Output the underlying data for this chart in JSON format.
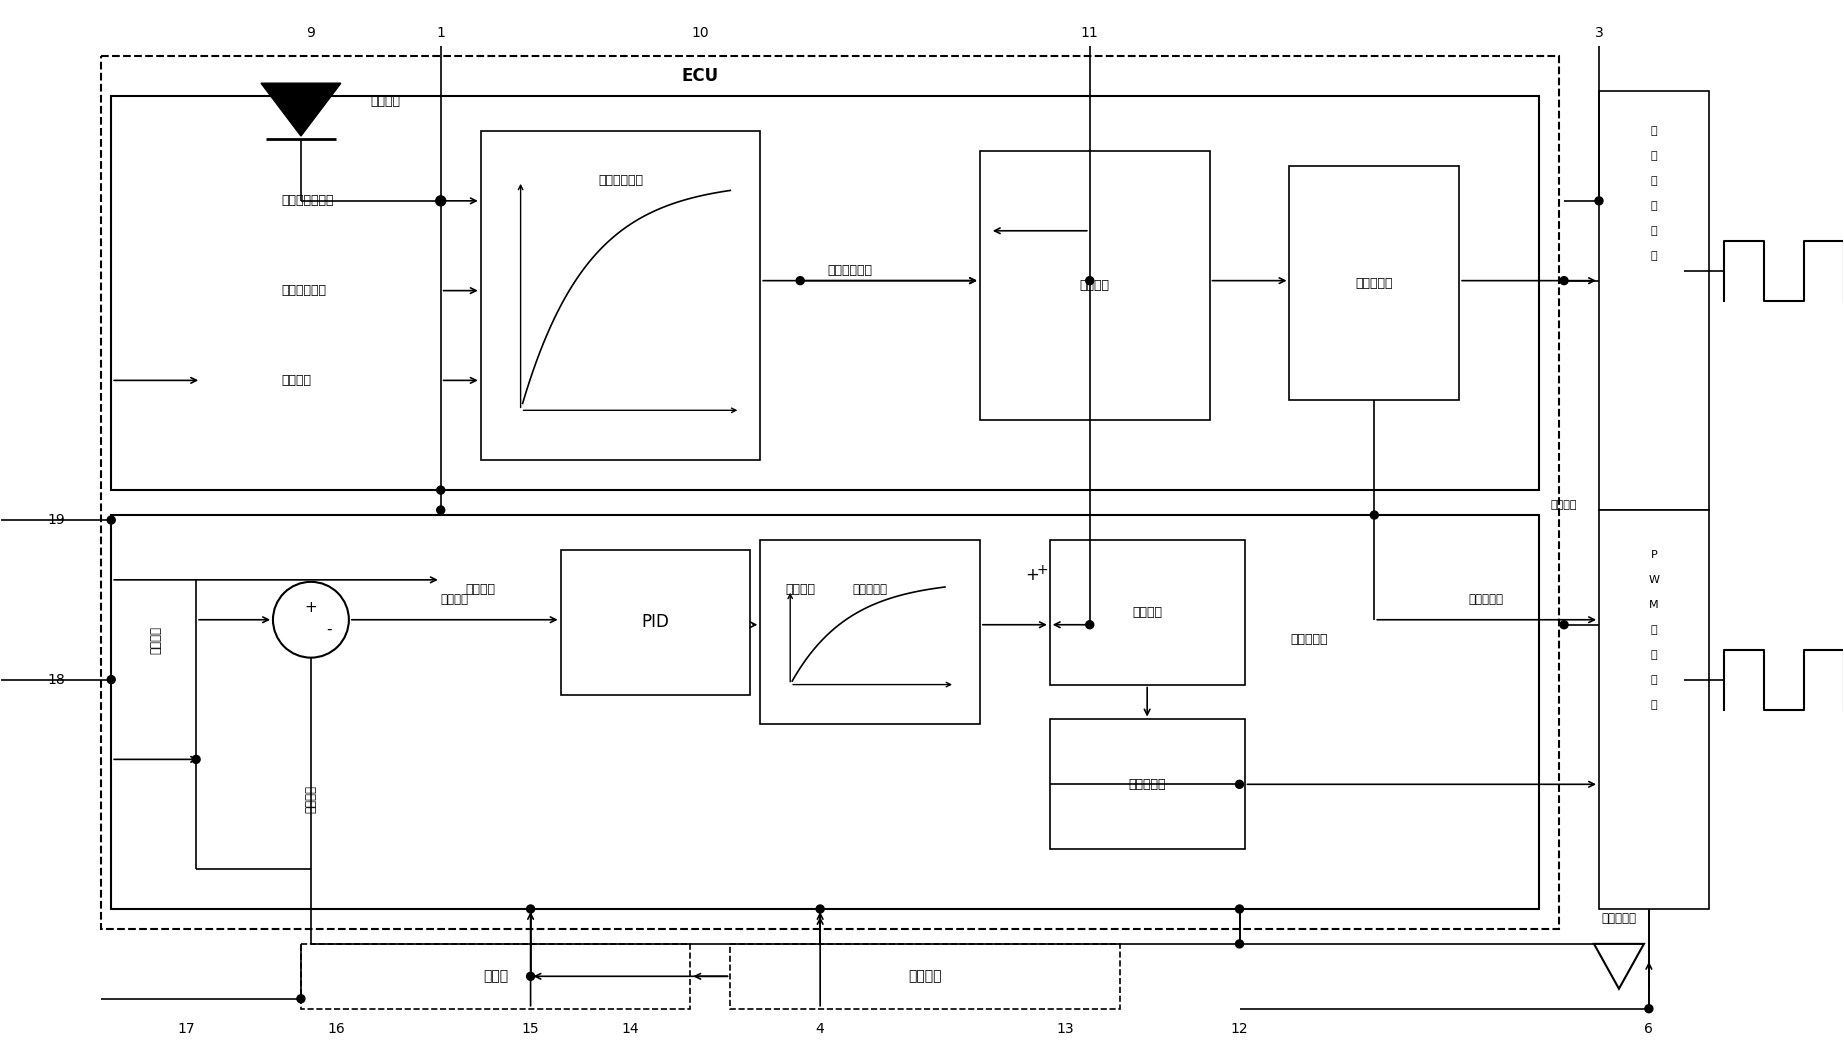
{
  "bg_color": "#ffffff",
  "box_color": "#ffffff",
  "border_color": "#000000",
  "fig_width": 18.44,
  "fig_height": 10.5,
  "labels": {
    "ECU": "ECU",
    "timer": "定时中断",
    "avg_speed": "发动机平均转速",
    "cycle_fuel": "循环喷射油量",
    "target_rail_up": "目标轨压",
    "base_current": "基准电流查询",
    "precontrol": "预控制电流值",
    "current_dist": "电流分配",
    "send_set_up": "发送设定値",
    "const_drive": "恒流驱动单元",
    "target_rail_lo": "目标轨压",
    "actual_rail": "实际轨压",
    "rail_diff": "轨压偏差",
    "PID": "PID",
    "vol_flow": "体积流量",
    "feedback_cur": "反馈电流值",
    "current_calc": "电流计算",
    "duty_calc": "占宽比计算",
    "send_set_lo": "发送设定値",
    "PWM_drive": "PWM驱动单元",
    "sync_trig": "同步触发",
    "common_rail": "共轨管",
    "high_press": "高压油泵",
    "sensor": "压力传感器",
    "plus": "+",
    "minus": "-"
  }
}
